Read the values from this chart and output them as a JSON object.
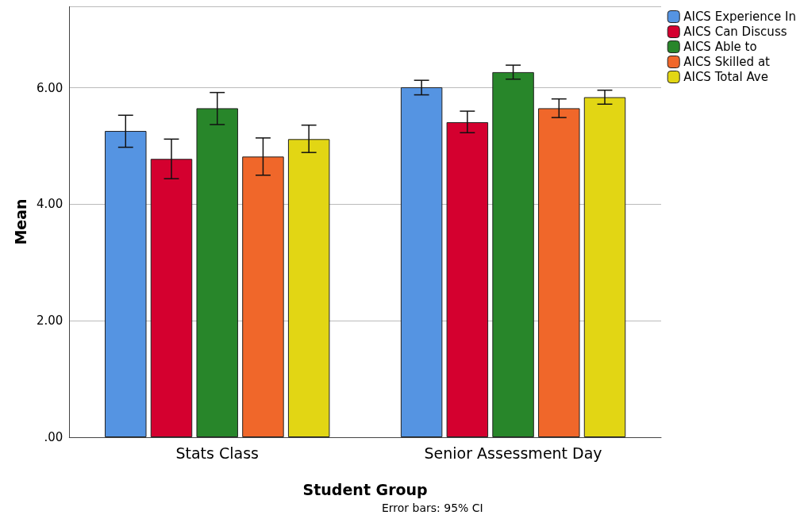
{
  "chart_data": {
    "type": "bar",
    "categories": [
      "Stats Class",
      "Senior Assessment Day"
    ],
    "series": [
      {
        "name": "AICS Experience In",
        "color": "#5594e2",
        "values": [
          5.26,
          6.01
        ],
        "errors": [
          [
            4.98,
            5.53
          ],
          [
            5.88,
            6.13
          ]
        ]
      },
      {
        "name": "AICS Can Discuss",
        "color": "#d4002f",
        "values": [
          4.78,
          5.41
        ],
        "errors": [
          [
            4.44,
            5.12
          ],
          [
            5.23,
            5.6
          ]
        ]
      },
      {
        "name": "AICS Able to",
        "color": "#28862a",
        "values": [
          5.65,
          6.27
        ],
        "errors": [
          [
            5.37,
            5.92
          ],
          [
            6.15,
            6.39
          ]
        ]
      },
      {
        "name": "AICS Skilled at",
        "color": "#f0672a",
        "values": [
          4.82,
          5.65
        ],
        "errors": [
          [
            4.5,
            5.14
          ],
          [
            5.49,
            5.81
          ]
        ]
      },
      {
        "name": "AICS Total Ave",
        "color": "#e2d614",
        "values": [
          5.12,
          5.84
        ],
        "errors": [
          [
            4.89,
            5.36
          ],
          [
            5.72,
            5.96
          ]
        ]
      }
    ],
    "xlabel": "Student Group",
    "ylabel": "Mean",
    "ylim": [
      0,
      7.4
    ],
    "yticks": [
      {
        "value": 0,
        "label": ".00"
      },
      {
        "value": 2,
        "label": "2.00"
      },
      {
        "value": 4,
        "label": "4.00"
      },
      {
        "value": 6,
        "label": "6.00"
      }
    ],
    "grid": "y",
    "legend": "top right",
    "annotations": [
      "Error bars: 95% CI"
    ]
  }
}
